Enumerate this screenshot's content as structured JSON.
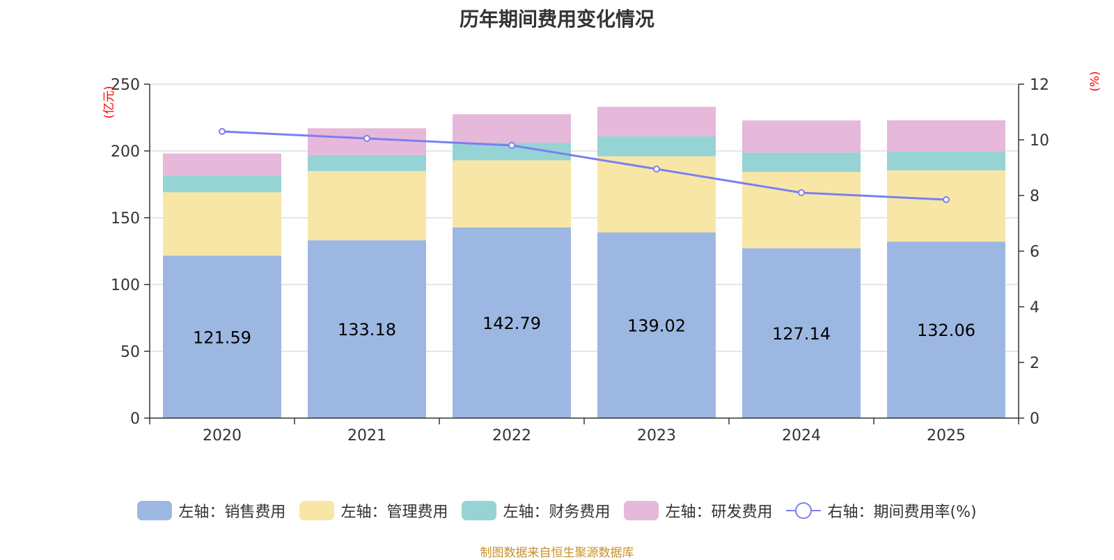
{
  "chart_data": {
    "type": "bar",
    "stacked": true,
    "title": "历年期间费用变化情况",
    "categories": [
      "2020",
      "2021",
      "2022",
      "2023",
      "2024",
      "2025"
    ],
    "left_axis": {
      "unit": "(亿元)",
      "ylim": [
        0,
        250
      ],
      "ticks": [
        0,
        50,
        100,
        150,
        200,
        250
      ]
    },
    "right_axis": {
      "unit": "(%)",
      "ylim": [
        0,
        12
      ],
      "ticks": [
        0,
        2,
        4,
        6,
        8,
        10,
        12
      ]
    },
    "series": [
      {
        "name": "左轴：销售费用",
        "axis": "left",
        "color": "#9cb8e2",
        "values": [
          121.59,
          133.18,
          142.79,
          139.02,
          127.14,
          132.06
        ],
        "labels": [
          "121.59",
          "133.18",
          "142.79",
          "139.02",
          "127.14",
          "132.06"
        ]
      },
      {
        "name": "左轴：管理费用",
        "axis": "left",
        "color": "#f8e6a6",
        "values": [
          47.5,
          51.8,
          50.2,
          57.0,
          57.2,
          53.4
        ]
      },
      {
        "name": "左轴：财务费用",
        "axis": "left",
        "color": "#96d3d4",
        "values": [
          12.5,
          12.0,
          13.0,
          15.0,
          14.5,
          14.0
        ]
      },
      {
        "name": "左轴：研发费用",
        "axis": "left",
        "color": "#e6b8da",
        "values": [
          16.5,
          20.0,
          21.5,
          22.0,
          24.0,
          23.5
        ]
      },
      {
        "name": "右轴：期间费用率(%)",
        "axis": "right",
        "type": "line",
        "color": "#7b7ff0",
        "values": [
          10.3,
          10.05,
          9.8,
          8.95,
          8.1,
          7.85
        ]
      }
    ]
  },
  "source_text": "制图数据来自恒生聚源数据库"
}
